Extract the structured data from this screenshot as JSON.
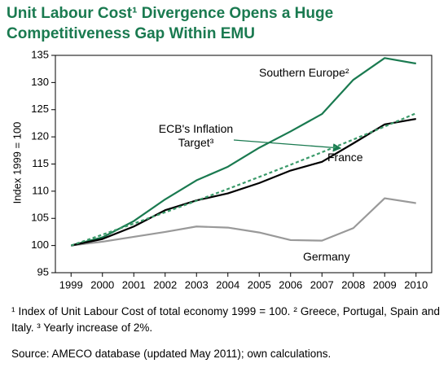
{
  "chart_data": {
    "type": "line",
    "title": [
      "Unit Labour Cost¹ Divergence Opens a Huge",
      "Competitiveness Gap Within EMU"
    ],
    "y_label": "Index 1999 = 100",
    "x": [
      1999,
      2000,
      2001,
      2002,
      2003,
      2004,
      2005,
      2006,
      2007,
      2008,
      2009,
      2010
    ],
    "xlim": [
      1998.5,
      2010.5
    ],
    "xticks": [
      1999,
      2000,
      2001,
      2002,
      2003,
      2004,
      2005,
      2006,
      2007,
      2008,
      2009,
      2010
    ],
    "ylim": [
      95,
      135
    ],
    "yticks": [
      95,
      100,
      105,
      110,
      115,
      120,
      125,
      130,
      135
    ],
    "series": [
      {
        "name": "Southern Europe²",
        "color": "#1a7a50",
        "values": [
          100,
          101.5,
          104.5,
          108.5,
          112,
          114.5,
          118,
          121,
          124.2,
          130.5,
          134.5,
          133.5
        ]
      },
      {
        "name": "ECB's Inflation Target³",
        "color": "#3a9a6a",
        "dashed": true,
        "values": [
          100,
          102,
          104.04,
          106.12,
          108.24,
          110.41,
          112.62,
          114.87,
          117.17,
          119.51,
          121.9,
          124.34
        ]
      },
      {
        "name": "France",
        "color": "#000000",
        "values": [
          100,
          101.2,
          103.5,
          106.5,
          108.3,
          109.6,
          111.5,
          113.8,
          115.4,
          118.8,
          122.3,
          123.3
        ]
      },
      {
        "name": "Germany",
        "color": "#999999",
        "values": [
          100,
          100.7,
          101.6,
          102.5,
          103.5,
          103.3,
          102.4,
          101,
          100.9,
          103.2,
          108.7,
          107.8
        ]
      }
    ],
    "footnote": "¹ Index of Unit Labour Cost of total economy 1999 = 100.  ² Greece, Portugal, Spain and Italy.  ³ Yearly increase of 2%.",
    "source": "Source: AMECO database (updated May 2011); own calculations."
  }
}
